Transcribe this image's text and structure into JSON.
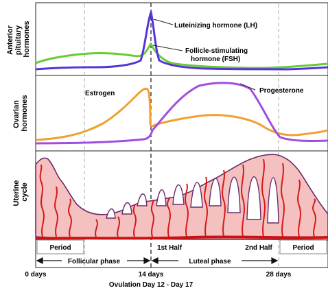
{
  "rows": {
    "pituitary_label": [
      "Anterior",
      "pituitary",
      "hormones"
    ],
    "ovarian_label": [
      "Ovarian",
      "hormones"
    ],
    "uterine_label": [
      "Uterine",
      "cycle"
    ]
  },
  "hormones": {
    "lh": "Luteinizing hormone (LH)",
    "fsh": [
      "Follicle-stimulating",
      "hormone (FSH)"
    ],
    "estrogen": "Estrogen",
    "progesterone": "Progesterone"
  },
  "phases": {
    "period_start": "Period",
    "period_end": "Period",
    "first_half": "1st Half",
    "second_half": "2nd Half",
    "follicular": "Follicular phase",
    "luteal": "Luteal phase"
  },
  "timeline": {
    "day0": "0 days",
    "day14": "14 days",
    "day28": "28 days",
    "ovulation": "Ovulation Day 12 - Day 17"
  },
  "colors": {
    "lh": "#5533dd",
    "fsh": "#66cc33",
    "estrogen": "#f0a030",
    "progesterone": "#a04de0",
    "endometrium": "#f5c0c0",
    "endometrium_edge": "#6a2a6a",
    "vessel": "#d81818",
    "base": "#cc1111"
  }
}
